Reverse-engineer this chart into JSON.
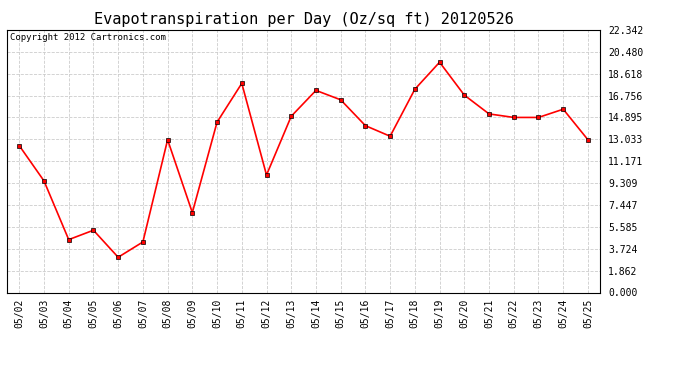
{
  "title": "Evapotranspiration per Day (Oz/sq ft) 20120526",
  "copyright": "Copyright 2012 Cartronics.com",
  "dates": [
    "05/02",
    "05/03",
    "05/04",
    "05/05",
    "05/06",
    "05/07",
    "05/08",
    "05/09",
    "05/10",
    "05/11",
    "05/12",
    "05/13",
    "05/14",
    "05/15",
    "05/16",
    "05/17",
    "05/18",
    "05/19",
    "05/20",
    "05/21",
    "05/22",
    "05/23",
    "05/24",
    "05/25"
  ],
  "values": [
    12.5,
    9.5,
    4.5,
    5.3,
    3.0,
    4.3,
    13.0,
    6.8,
    14.5,
    17.8,
    10.0,
    15.0,
    17.2,
    16.4,
    14.2,
    13.3,
    17.3,
    19.6,
    16.8,
    15.2,
    14.9,
    14.9,
    15.6,
    13.0
  ],
  "yticks": [
    0.0,
    1.862,
    3.724,
    5.585,
    7.447,
    9.309,
    11.171,
    13.033,
    14.895,
    16.756,
    18.618,
    20.48,
    22.342
  ],
  "ylim": [
    0.0,
    22.342
  ],
  "line_color": "red",
  "marker": "s",
  "marker_size": 2.5,
  "bg_color": "white",
  "grid_color": "#cccccc",
  "title_fontsize": 11,
  "copyright_fontsize": 6.5,
  "tick_fontsize": 7
}
